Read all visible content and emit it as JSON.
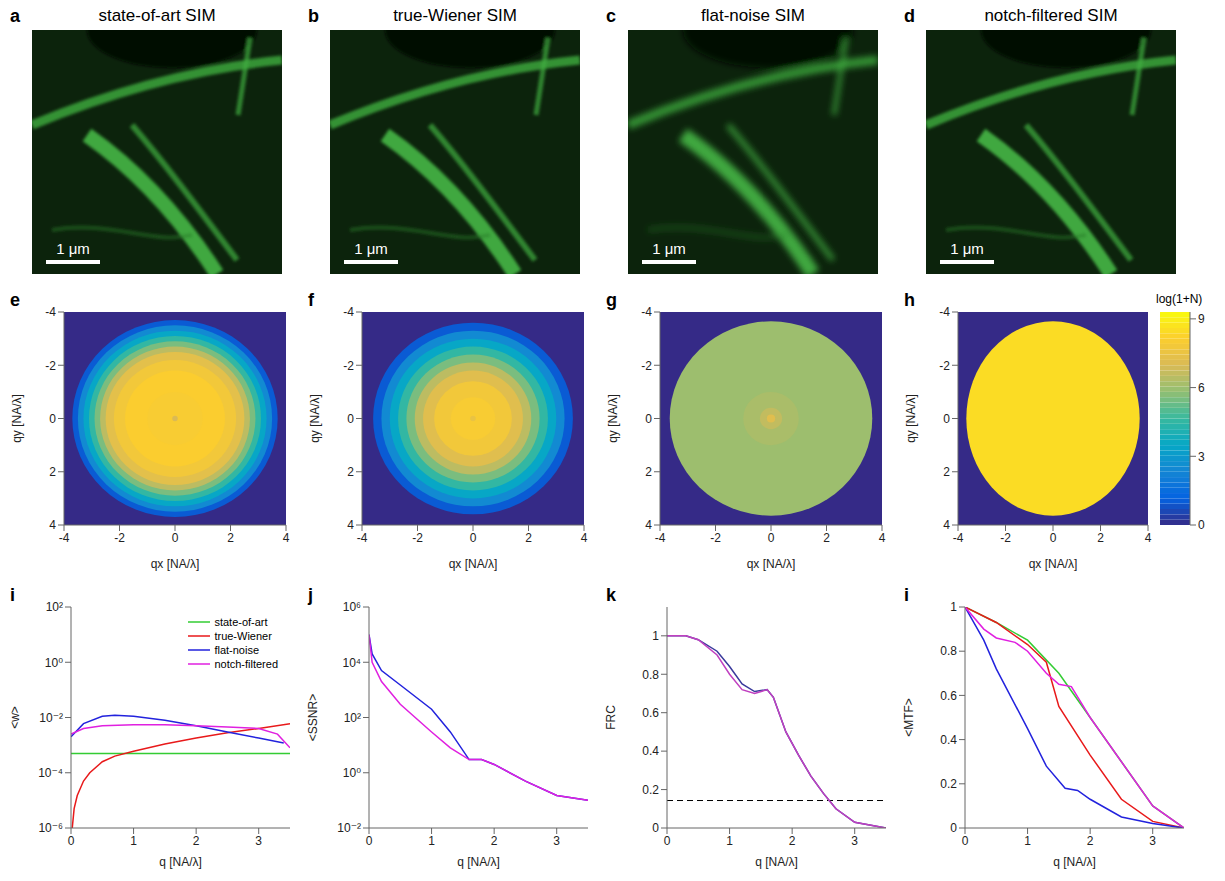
{
  "chart_data": [
    {
      "type": "image",
      "label": "a",
      "title": "state-of-art SIM",
      "scale_bar": "1 μm"
    },
    {
      "type": "image",
      "label": "b",
      "title": "true-Wiener SIM",
      "scale_bar": "1 μm"
    },
    {
      "type": "image",
      "label": "c",
      "title": "flat-noise SIM",
      "scale_bar": "1 μm"
    },
    {
      "type": "image",
      "label": "d",
      "title": "notch-filtered SIM",
      "scale_bar": "1 μm"
    },
    {
      "type": "heatmap",
      "label": "e",
      "xlabel": "qx [NA/λ]",
      "ylabel": "qy [NA/λ]",
      "xlim": [
        -4,
        4
      ],
      "ylim": [
        4,
        -4
      ],
      "xticks": [
        -4,
        -2,
        0,
        2,
        4
      ],
      "yticks": [
        -4,
        -2,
        0,
        2,
        4
      ],
      "background": 0,
      "radial_profile": {
        "center": [
          0,
          0
        ],
        "r": [
          3.7,
          3.5,
          3.3,
          3.1,
          2.9,
          2.7,
          2.5,
          2.2,
          1.8,
          1.0,
          0.1
        ],
        "values": [
          1,
          2.5,
          3.5,
          4.5,
          5.5,
          6.5,
          7.3,
          7.8,
          8.1,
          8.0,
          7.0
        ]
      }
    },
    {
      "type": "heatmap",
      "label": "f",
      "xlabel": "qx [NA/λ]",
      "ylabel": "qy [NA/λ]",
      "xlim": [
        -4,
        4
      ],
      "ylim": [
        4,
        -4
      ],
      "xticks": [
        -4,
        -2,
        0,
        2,
        4
      ],
      "yticks": [
        -4,
        -2,
        0,
        2,
        4
      ],
      "background": 0,
      "radial_profile": {
        "center": [
          0,
          0
        ],
        "r": [
          3.6,
          3.3,
          3.0,
          2.7,
          2.4,
          2.1,
          1.8,
          1.4,
          0.8,
          0.1
        ],
        "values": [
          1,
          2.5,
          3.5,
          4.5,
          5.5,
          6.5,
          7.2,
          7.8,
          8.0,
          7.5
        ]
      }
    },
    {
      "type": "heatmap",
      "label": "g",
      "xlabel": "qx [NA/λ]",
      "ylabel": "qy [NA/λ]",
      "xlim": [
        -4,
        4
      ],
      "ylim": [
        4,
        -4
      ],
      "xticks": [
        -4,
        -2,
        0,
        2,
        4
      ],
      "yticks": [
        -4,
        -2,
        0,
        2,
        4
      ],
      "background": 0,
      "radial_profile": {
        "center": [
          0,
          0
        ],
        "r": [
          3.65,
          1.0,
          0.4,
          0.15
        ],
        "values": [
          6.0,
          6.2,
          6.6,
          7.2
        ]
      }
    },
    {
      "type": "heatmap",
      "label": "h",
      "xlabel": "qx [NA/λ]",
      "ylabel": "qy [NA/λ]",
      "xlim": [
        -4,
        4
      ],
      "ylim": [
        4,
        -4
      ],
      "xticks": [
        -4,
        -2,
        0,
        2,
        4
      ],
      "yticks": [
        -4,
        -2,
        0,
        2,
        4
      ],
      "background": 0,
      "radial_profile": {
        "center": [
          0,
          0
        ],
        "r": [
          3.65
        ],
        "values": [
          8.5
        ]
      },
      "colorbar": {
        "label": "log(1+N)",
        "range": [
          0,
          9.3
        ],
        "ticks": [
          0,
          3,
          6,
          9
        ]
      }
    },
    {
      "type": "line",
      "label": "i",
      "xlabel": "q [NA/λ]",
      "ylabel": "<w>",
      "xlim": [
        0,
        3.5
      ],
      "xticks": [
        0,
        1,
        2,
        3
      ],
      "ylim": [
        1e-06,
        100
      ],
      "log": "y",
      "yticks": [
        {
          "value": 1e-06,
          "label": "10⁻⁶"
        },
        {
          "value": 0.0001,
          "label": "10⁻⁴"
        },
        {
          "value": 0.01,
          "label": "10⁻²"
        },
        {
          "value": 1,
          "label": "10⁰"
        },
        {
          "value": 100,
          "label": "10²"
        }
      ],
      "legend": "upper right",
      "series": [
        {
          "name": "state-of-art",
          "color": "#33cc33",
          "x": [
            0,
            3.5
          ],
          "values": [
            0.0005,
            0.0005
          ]
        },
        {
          "name": "true-Wiener",
          "color": "#e8191a",
          "x": [
            0.02,
            0.05,
            0.1,
            0.2,
            0.3,
            0.5,
            0.7,
            1,
            1.5,
            2,
            2.5,
            3,
            3.5
          ],
          "values": [
            1e-06,
            5e-06,
            1.5e-05,
            5e-05,
            0.0001,
            0.00025,
            0.0004,
            0.0006,
            0.0011,
            0.0018,
            0.0028,
            0.004,
            0.006
          ]
        },
        {
          "name": "flat-noise",
          "color": "#2222dd",
          "x": [
            0,
            0.2,
            0.5,
            0.7,
            1,
            1.5,
            2,
            2.5,
            3,
            3.4
          ],
          "values": [
            0.002,
            0.006,
            0.011,
            0.012,
            0.011,
            0.008,
            0.005,
            0.003,
            0.0018,
            0.0012
          ]
        },
        {
          "name": "notch-filtered",
          "color": "#e020e0",
          "x": [
            0,
            0.2,
            0.5,
            1,
            1.5,
            2,
            2.5,
            3,
            3.3,
            3.5
          ],
          "values": [
            0.0025,
            0.004,
            0.005,
            0.0055,
            0.0055,
            0.005,
            0.0045,
            0.004,
            0.0025,
            0.0008
          ]
        }
      ]
    },
    {
      "type": "line",
      "label": "j",
      "xlabel": "q [NA/λ]",
      "ylabel": "<SSNR>",
      "xlim": [
        0,
        3.5
      ],
      "xticks": [
        0,
        1,
        2,
        3
      ],
      "ylim": [
        0.01,
        1000000
      ],
      "log": "y",
      "yticks": [
        {
          "value": 0.01,
          "label": "10⁻²"
        },
        {
          "value": 1,
          "label": "10⁰"
        },
        {
          "value": 100,
          "label": "10²"
        },
        {
          "value": 10000,
          "label": "10⁴"
        },
        {
          "value": 1000000,
          "label": "10⁶"
        }
      ],
      "series": [
        {
          "color": "#2222dd",
          "x": [
            0,
            0.05,
            0.2,
            0.5,
            1,
            1.3,
            1.6,
            1.8,
            2,
            2.5,
            3,
            3.5
          ],
          "values": [
            100000,
            20000,
            5000,
            1500,
            200,
            30,
            3,
            3,
            2,
            0.5,
            0.15,
            0.1
          ]
        },
        {
          "color": "#e020e0",
          "x": [
            0,
            0.05,
            0.2,
            0.5,
            1,
            1.3,
            1.6,
            1.8,
            2,
            2.5,
            3,
            3.5
          ],
          "values": [
            100000,
            10000,
            2000,
            300,
            30,
            8,
            3,
            3,
            2,
            0.5,
            0.15,
            0.1
          ]
        }
      ]
    },
    {
      "type": "line",
      "label": "k",
      "xlabel": "q [NA/λ]",
      "ylabel": "FRC",
      "xlim": [
        0,
        3.5
      ],
      "xticks": [
        0,
        1,
        2,
        3
      ],
      "ylim": [
        0,
        1.15
      ],
      "yticks": [
        0,
        0.2,
        0.4,
        0.6,
        0.8,
        1
      ],
      "threshold": 0.143,
      "series": [
        {
          "color": "#3a3a9c",
          "x": [
            0,
            0.3,
            0.5,
            0.8,
            1.0,
            1.2,
            1.4,
            1.6,
            1.7,
            1.9,
            2.1,
            2.3,
            2.5,
            2.7,
            3.0,
            3.5
          ],
          "values": [
            1,
            1,
            0.98,
            0.92,
            0.84,
            0.75,
            0.71,
            0.72,
            0.68,
            0.5,
            0.38,
            0.27,
            0.18,
            0.1,
            0.03,
            0
          ]
        },
        {
          "color": "#c040c0",
          "x": [
            0,
            0.3,
            0.5,
            0.8,
            1.0,
            1.2,
            1.4,
            1.6,
            1.7,
            1.9,
            2.1,
            2.3,
            2.5,
            2.7,
            3.0,
            3.5
          ],
          "values": [
            1,
            1,
            0.98,
            0.9,
            0.8,
            0.72,
            0.7,
            0.72,
            0.68,
            0.5,
            0.38,
            0.27,
            0.18,
            0.1,
            0.03,
            0
          ]
        }
      ]
    },
    {
      "type": "line",
      "label": "i",
      "xlabel": "q [NA/λ]",
      "ylabel": "<MTF>",
      "xlim": [
        0,
        3.5
      ],
      "xticks": [
        0,
        1,
        2,
        3
      ],
      "ylim": [
        0,
        1
      ],
      "yticks": [
        0,
        0.2,
        0.4,
        0.6,
        0.8,
        1
      ],
      "series": [
        {
          "color": "#33cc33",
          "x": [
            0,
            0.5,
            1,
            1.5,
            2,
            2.5,
            3,
            3.5
          ],
          "values": [
            1,
            0.93,
            0.85,
            0.7,
            0.5,
            0.3,
            0.1,
            0
          ]
        },
        {
          "color": "#e8191a",
          "x": [
            0,
            0.5,
            1,
            1.3,
            1.5,
            2,
            2.5,
            3,
            3.5
          ],
          "values": [
            1,
            0.93,
            0.83,
            0.75,
            0.55,
            0.33,
            0.13,
            0.03,
            0
          ]
        },
        {
          "color": "#2222dd",
          "x": [
            0,
            0.3,
            0.5,
            1,
            1.3,
            1.6,
            1.8,
            2,
            2.5,
            3,
            3.5
          ],
          "values": [
            1,
            0.85,
            0.72,
            0.45,
            0.28,
            0.18,
            0.17,
            0.13,
            0.05,
            0.02,
            0
          ]
        },
        {
          "color": "#e020e0",
          "x": [
            0,
            0.3,
            0.5,
            0.8,
            1,
            1.3,
            1.5,
            1.7,
            2,
            2.5,
            3,
            3.5
          ],
          "values": [
            1,
            0.9,
            0.86,
            0.84,
            0.8,
            0.7,
            0.65,
            0.64,
            0.5,
            0.3,
            0.1,
            0
          ]
        }
      ]
    }
  ]
}
